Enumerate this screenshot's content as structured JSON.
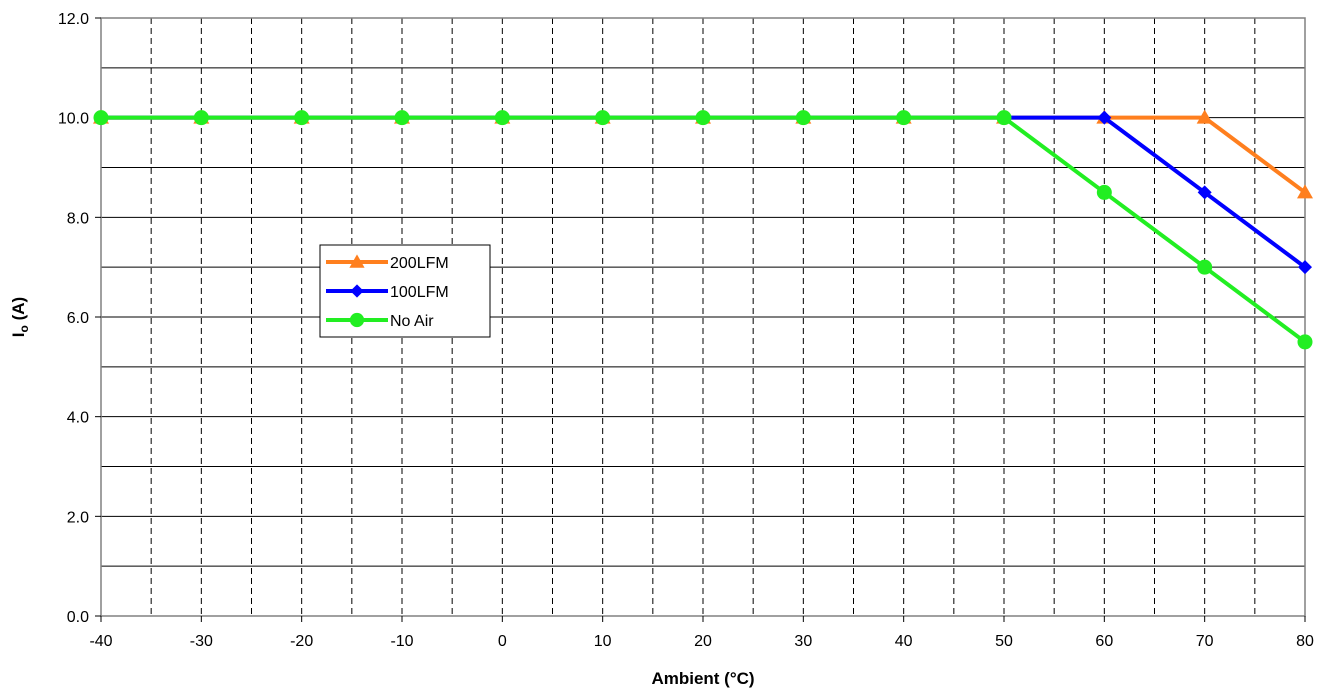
{
  "chart_data": {
    "type": "line",
    "title": "",
    "xlabel": "Ambient (°C)",
    "ylabel_main": "I",
    "ylabel_sub": "o",
    "ylabel_rest": " (A)",
    "xlim": [
      -40,
      80
    ],
    "ylim": [
      0,
      12
    ],
    "x_ticks": [
      "-40",
      "-30",
      "-20",
      "-10",
      "0",
      "10",
      "20",
      "30",
      "40",
      "50",
      "60",
      "70",
      "80"
    ],
    "y_ticks": [
      "0.0",
      "2.0",
      "4.0",
      "6.0",
      "8.0",
      "10.0",
      "12.0"
    ],
    "grid": {
      "horizontal": "solid",
      "vertical": "dashed"
    },
    "legend_position": "left-middle",
    "series": [
      {
        "name": "200LFM",
        "color": "#ff7f1e",
        "marker": "triangle",
        "x": [
          -40,
          -30,
          -20,
          -10,
          0,
          10,
          20,
          30,
          40,
          50,
          60,
          70,
          80
        ],
        "y": [
          10,
          10,
          10,
          10,
          10,
          10,
          10,
          10,
          10,
          10,
          10,
          10,
          8.5
        ]
      },
      {
        "name": "100LFM",
        "color": "#0000ff",
        "marker": "diamond",
        "x": [
          -40,
          -30,
          -20,
          -10,
          0,
          10,
          20,
          30,
          40,
          50,
          60,
          70,
          80
        ],
        "y": [
          10,
          10,
          10,
          10,
          10,
          10,
          10,
          10,
          10,
          10,
          10,
          8.5,
          7
        ]
      },
      {
        "name": "No Air",
        "color": "#22ee22",
        "marker": "circle",
        "x": [
          -40,
          -30,
          -20,
          -10,
          0,
          10,
          20,
          30,
          40,
          50,
          60,
          70,
          80
        ],
        "y": [
          10,
          10,
          10,
          10,
          10,
          10,
          10,
          10,
          10,
          10,
          8.5,
          7,
          5.5
        ]
      }
    ]
  }
}
